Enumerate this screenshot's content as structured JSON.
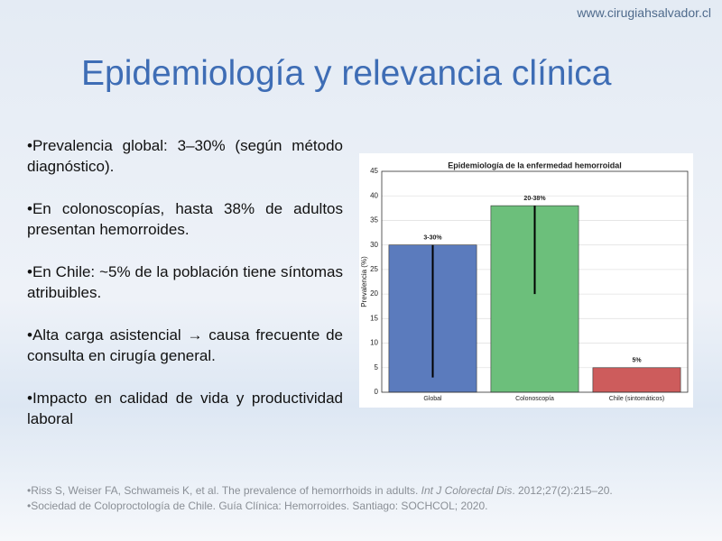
{
  "header": {
    "site": "www.cirugiahsalvador.cl",
    "title": "Epidemiología y relevancia clínica"
  },
  "bullets": [
    "Prevalencia global: 3–30% (según método diagnóstico).",
    "En colonoscopías, hasta 38% de adultos presentan hemorroides.",
    "En Chile: ~5% de la población tiene síntomas atribuibles.",
    "Alta carga asistencial → causa frecuente de consulta en cirugía general.",
    "Impacto en calidad de vida y productividad laboral"
  ],
  "references": [
    {
      "parts": [
        "Riss S, Weiser FA, Schwameis K, et al. The prevalence of hemorrhoids in adults. ",
        "Int J Colorectal Dis",
        ". 2012;27(2):215–20."
      ]
    },
    {
      "parts": [
        "Sociedad de Coloproctología de Chile. Guía Clínica: Hemorroides. Santiago: SOCHCOL; 2020."
      ]
    }
  ],
  "chart_data": {
    "type": "bar",
    "title": "Epidemiología de la enfermedad hemorroidal",
    "y_label": "Prevalencia (%)",
    "categories": [
      "Global",
      "Colonoscopía",
      "Chile (sintomáticos)"
    ],
    "values": [
      30,
      38,
      5
    ],
    "value_labels": [
      "3-30%",
      "20-38%",
      "5%"
    ],
    "range_low": [
      3,
      20,
      null
    ],
    "colors": [
      "#5b7bbd",
      "#6cbf7b",
      "#cd5c5c"
    ],
    "ylim": [
      0,
      45
    ],
    "yticks": [
      0,
      5,
      10,
      15,
      20,
      25,
      30,
      35,
      40,
      45
    ],
    "grid": true
  }
}
